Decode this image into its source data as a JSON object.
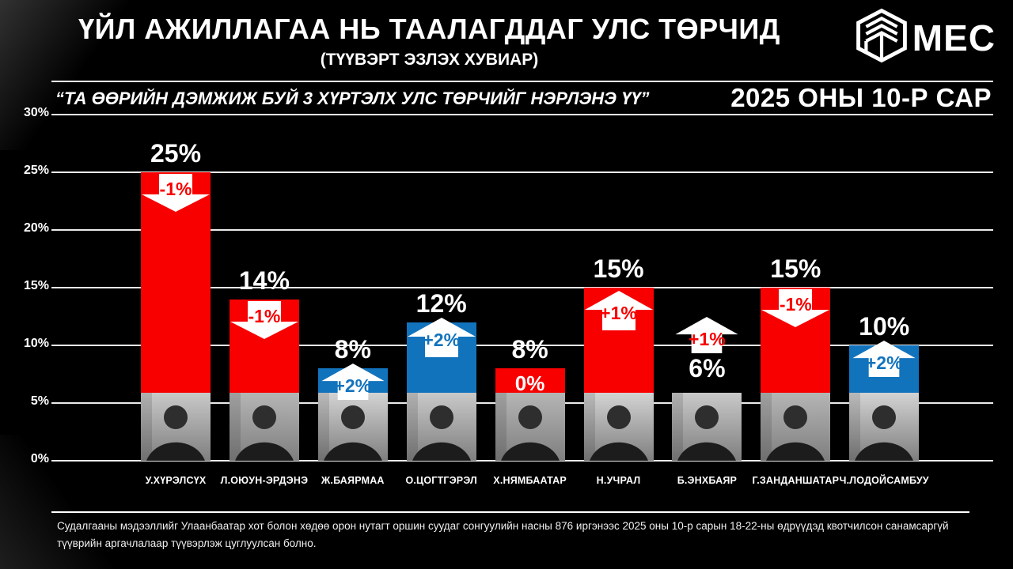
{
  "header": {
    "title": "ҮЙЛ АЖИЛЛАГАА НЬ ТААЛАГДДАГ УЛС ТӨРЧИД",
    "subtitle": "(ТҮҮВЭРТ ЭЗЛЭХ ХУВИАР)",
    "logo_text": "MEC"
  },
  "survey": {
    "question": "“ТА ӨӨРИЙН ДЭМЖИЖ БУЙ 3 ХҮРТЭЛХ УЛС ТӨРЧИЙГ НЭРЛЭНЭ ҮҮ”",
    "period": "2025 ОНЫ 10-Р САР"
  },
  "chart_data": {
    "type": "bar",
    "title": "ҮЙЛ АЖИЛЛАГАА НЬ ТААЛАГДДАГ УЛС ТӨРЧИД (ТҮҮВЭРТ ЭЗЛЭХ ХУВИАР)",
    "ylim": [
      0,
      30
    ],
    "grid": true,
    "y_ticks": [
      "30%",
      "25%",
      "20%",
      "15%",
      "10%",
      "5%",
      "0%"
    ],
    "colors": {
      "red": "#F80000",
      "blue": "#1273BD",
      "white": "#FFFFFF"
    },
    "bars": [
      {
        "name": "У.ХҮРЭЛСҮХ",
        "value": 25,
        "label": "25%",
        "color": "red",
        "trend": "-1%",
        "trend_dir": "down",
        "trend_color": "red"
      },
      {
        "name": "Л.ОЮУН-ЭРДЭНЭ",
        "value": 14,
        "label": "14%",
        "color": "red",
        "trend": "-1%",
        "trend_dir": "down",
        "trend_color": "red"
      },
      {
        "name": "Ж.БАЯРМАА",
        "value": 8,
        "label": "8%",
        "color": "blue",
        "trend": "+2%",
        "trend_dir": "up",
        "trend_color": "blue"
      },
      {
        "name": "О.ЦОГТГЭРЭЛ",
        "value": 12,
        "label": "12%",
        "color": "blue",
        "trend": "+2%",
        "trend_dir": "up",
        "trend_color": "blue"
      },
      {
        "name": "Х.НЯМБААТАР",
        "value": 8,
        "label": "8%",
        "color": "red",
        "trend": "0%",
        "trend_dir": "none",
        "trend_color": "white"
      },
      {
        "name": "Н.УЧРАЛ",
        "value": 15,
        "label": "15%",
        "color": "red",
        "trend": "+1%",
        "trend_dir": "up",
        "trend_color": "red"
      },
      {
        "name": "Б.ЭНХБАЯР",
        "value": 6,
        "label": "6%",
        "color": "none",
        "trend": "+1%",
        "trend_dir": "up",
        "trend_color": "red",
        "label_position": "below-arrow"
      },
      {
        "name": "Г.ЗАНДАНШАТАР",
        "value": 15,
        "label": "15%",
        "color": "red",
        "trend": "-1%",
        "trend_dir": "down",
        "trend_color": "red"
      },
      {
        "name": "Ч.ЛОДОЙСАМБУУ",
        "value": 10,
        "label": "10%",
        "color": "blue",
        "trend": "+2%",
        "trend_dir": "up",
        "trend_color": "blue"
      }
    ]
  },
  "footer": {
    "note": "Судалгааны мэдээллийг Улаанбаатар хот болон хөдөө орон нутагт оршин суудаг сонгуулийн насны 876 иргэнээс 2025 оны 10-р сарын 18-22-ны өдрүүдэд квотчилсон санамсаргүй түүврийн аргачлалаар түүвэрлэж цуглуулсан болно."
  }
}
